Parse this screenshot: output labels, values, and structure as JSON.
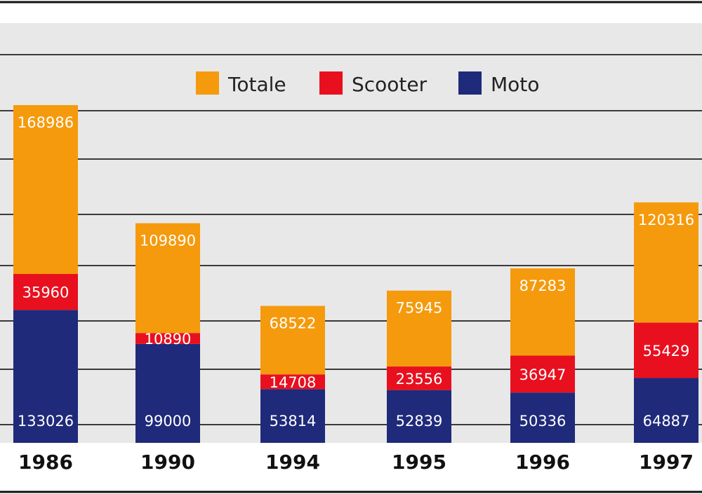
{
  "chart_data": {
    "type": "bar",
    "stacked": true,
    "categories": [
      "1986",
      "1990",
      "1994",
      "1995",
      "1996",
      "1997"
    ],
    "series": [
      {
        "name": "Moto",
        "color": "#1f2a7a",
        "values": [
          133026,
          99000,
          53814,
          52839,
          50336,
          64887
        ]
      },
      {
        "name": "Scooter",
        "color": "#e8101f",
        "values": [
          35960,
          10890,
          14708,
          23556,
          36947,
          55429
        ]
      },
      {
        "name": "Totale",
        "color": "#f59a0c",
        "values": [
          168986,
          109890,
          68522,
          75945,
          87283,
          120316
        ]
      }
    ],
    "legend": {
      "placement": "top-center",
      "order": [
        "Totale",
        "Scooter",
        "Moto"
      ]
    },
    "grid": true,
    "ylim": [
      0,
      420000
    ],
    "colors": {
      "background": "#e8e8e8",
      "gridline": "#3a3a3a",
      "segment_label": "#ffffff",
      "tick_label": "#111111"
    }
  }
}
